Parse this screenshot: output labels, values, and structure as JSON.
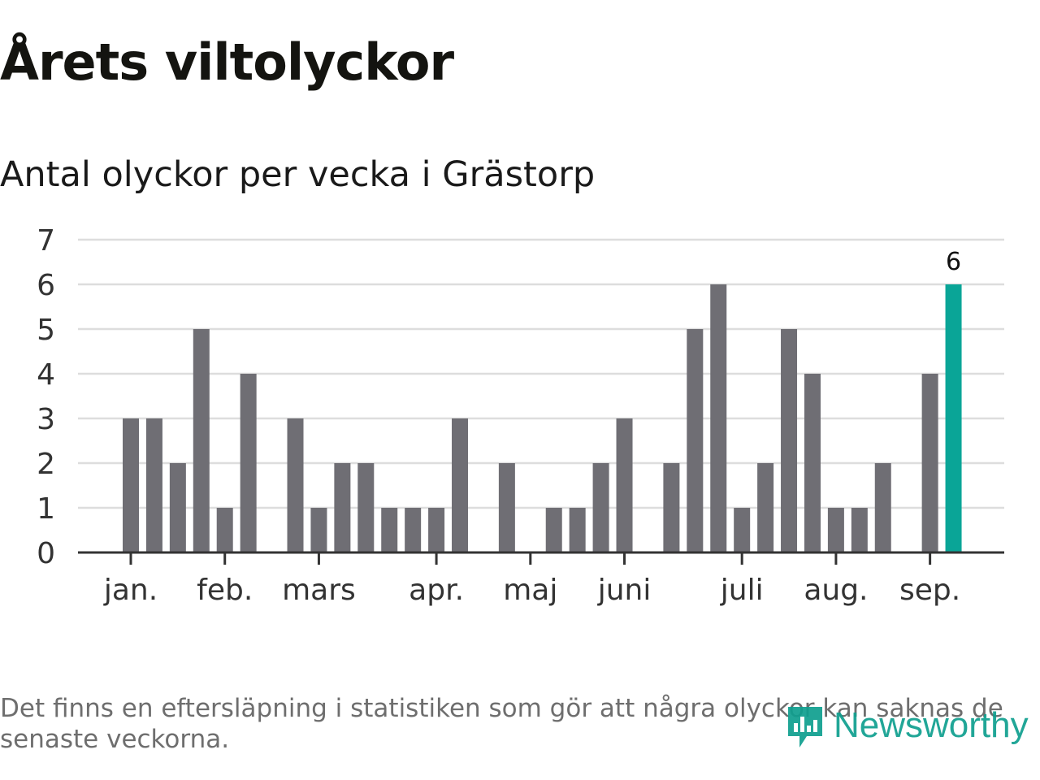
{
  "header": {
    "title": "Årets viltolyckor",
    "subtitle": "Antal olyckor per vecka i Grästorp"
  },
  "chart_data": {
    "type": "bar",
    "title": "Årets viltolyckor",
    "subtitle": "Antal olyckor per vecka i Grästorp",
    "xlabel": "",
    "ylabel": "",
    "ylim": [
      0,
      7
    ],
    "yticks": [
      0,
      1,
      2,
      3,
      4,
      5,
      6,
      7
    ],
    "grid": true,
    "week_count": 36,
    "months": [
      {
        "label": "jan.",
        "week_pos": 0
      },
      {
        "label": "feb.",
        "week_pos": 4
      },
      {
        "label": "mars",
        "week_pos": 8
      },
      {
        "label": "apr.",
        "week_pos": 13
      },
      {
        "label": "maj",
        "week_pos": 17
      },
      {
        "label": "juni",
        "week_pos": 21
      },
      {
        "label": "juli",
        "week_pos": 26
      },
      {
        "label": "aug.",
        "week_pos": 30
      },
      {
        "label": "sep.",
        "week_pos": 34
      }
    ],
    "values": [
      3,
      3,
      2,
      5,
      1,
      4,
      0,
      3,
      1,
      2,
      2,
      1,
      1,
      1,
      3,
      0,
      2,
      0,
      1,
      1,
      2,
      3,
      0,
      2,
      5,
      6,
      1,
      2,
      5,
      4,
      1,
      1,
      2,
      0,
      4,
      6
    ],
    "highlight_index": 35,
    "highlight_label": "6",
    "colors": {
      "bar": "#6f6e74",
      "highlight": "#0aa597",
      "grid": "#dddddd",
      "axis": "#333333"
    }
  },
  "footnote": "Det finns en eftersläpning i statistiken som gör att några olyckor kan saknas de senaste veckorna.",
  "brand": {
    "name": "Newsworthy",
    "icon": "newsworthy-logo-icon",
    "color": "#0f9f8f"
  }
}
